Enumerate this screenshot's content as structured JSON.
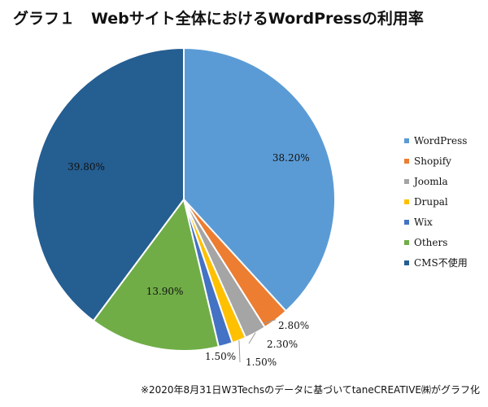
{
  "title": {
    "prefix": "グラフ１",
    "text": "Webサイト全体におけるWordPressの利用率"
  },
  "chart_data": {
    "type": "pie",
    "categories": [
      "WordPress",
      "Shopify",
      "Joomla",
      "Drupal",
      "Wix",
      "Others",
      "CMS不使用"
    ],
    "values": [
      38.2,
      2.8,
      2.3,
      1.5,
      1.5,
      13.9,
      39.8
    ],
    "labels": [
      "38.20%",
      "2.80%",
      "2.30%",
      "1.50%",
      "1.50%",
      "13.90%",
      "39.80%"
    ],
    "colors": [
      "#5B9BD5",
      "#ED7D31",
      "#A5A5A5",
      "#FFC000",
      "#4472C4",
      "#70AD47",
      "#255E91"
    ],
    "legend_position": "right",
    "start": "top",
    "direction": "clockwise"
  },
  "footnote": "※2020年8月31日W3Techsのデータに基づいてtaneCREATIVE㈱がグラフ化"
}
